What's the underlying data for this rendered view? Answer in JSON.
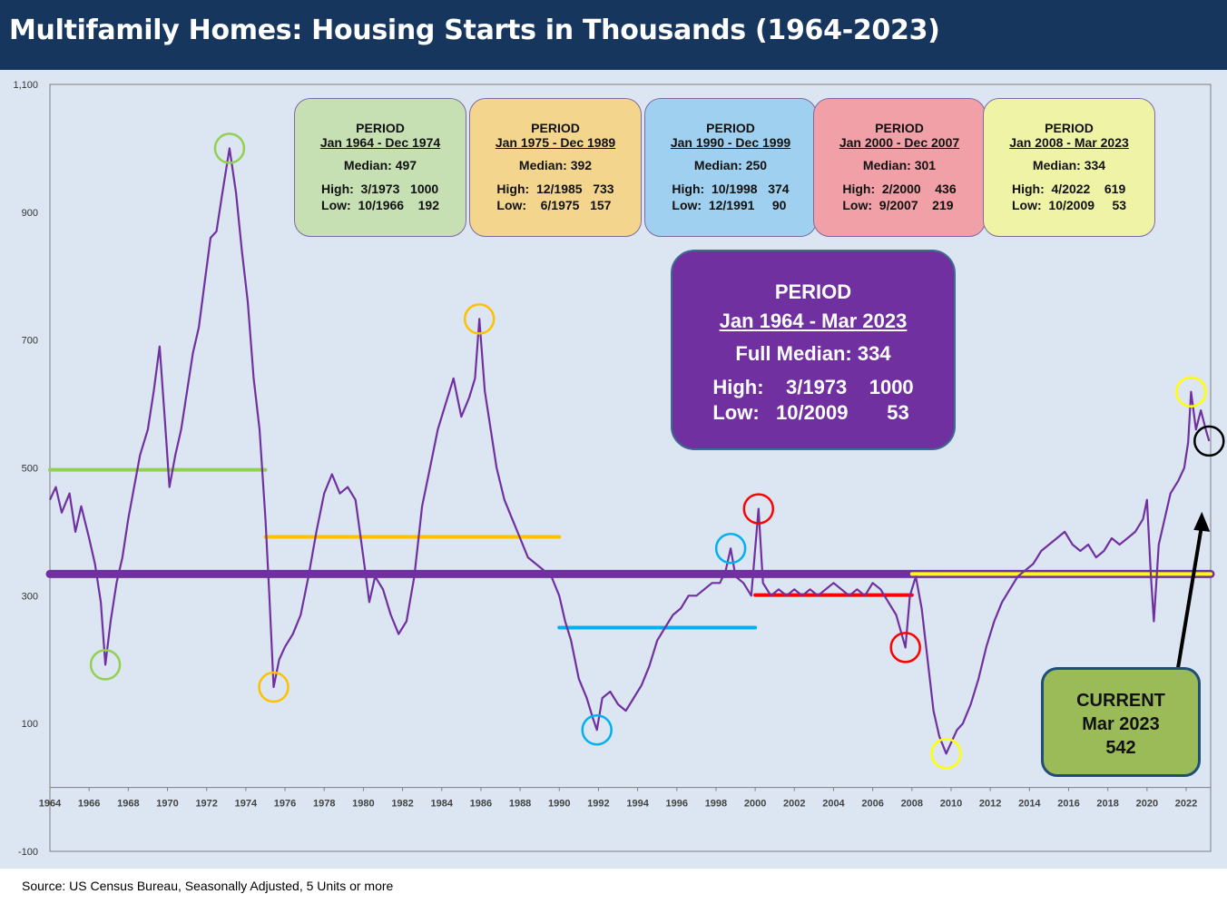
{
  "title": "Multifamily Homes: Housing Starts in Thousands (1964-2023)",
  "source": "Source: US Census Bureau, Seasonally Adjusted, 5 Units or more",
  "colors": {
    "series": "#7030a0",
    "title_bar": "#17365d",
    "background": "#dce6f2",
    "full_median": "#7030a0",
    "period1": "#92d050",
    "period2": "#ffc000",
    "period3": "#00b0f0",
    "period4": "#ff0000",
    "period5": "#ffff00",
    "current_marker": "#000000"
  },
  "period_boxes": [
    {
      "period": "PERIOD",
      "range": "Jan 1964 - Dec 1974",
      "median": "Median: 497",
      "high": "High:  3/1973   1000",
      "low": "Low:  10/1966    192",
      "color": "#c6e0b4"
    },
    {
      "period": "PERIOD",
      "range": "Jan 1975 - Dec 1989",
      "median": "Median: 392",
      "high": "High:  12/1985   733",
      "low": "Low:    6/1975   157",
      "color": "#f4d58d"
    },
    {
      "period": "PERIOD",
      "range": "Jan 1990 - Dec 1999",
      "median": "Median: 250",
      "high": "High:  10/1998   374",
      "low": "Low:  12/1991     90",
      "color": "#9fd0f0"
    },
    {
      "period": "PERIOD",
      "range": "Jan 2000 - Dec 2007",
      "median": "Median: 301",
      "high": "High:  2/2000    436",
      "low": "Low:  9/2007    219",
      "color": "#f0a0a6"
    },
    {
      "period": "PERIOD",
      "range": "Jan 2008 - Mar 2023",
      "median": "Median: 334",
      "high": "High:  4/2022    619",
      "low": "Low:  10/2009     53",
      "color": "#eef3a6"
    }
  ],
  "full_period_box": {
    "period": "PERIOD",
    "range": "Jan 1964 - Mar 2023",
    "median": "Full Median: 334",
    "high": "High:    3/1973    1000",
    "low": "Low:   10/2009       53"
  },
  "current_box": {
    "line1": "CURRENT",
    "line2": "Mar 2023",
    "line3": "542"
  },
  "chart_data": {
    "type": "line",
    "title": "Multifamily Homes: Housing Starts in Thousands (1964-2023)",
    "xlabel": "",
    "ylabel": "",
    "xlim": [
      1964,
      2023.25
    ],
    "ylim": [
      -100,
      1100
    ],
    "y_ticks": [
      -100,
      100,
      300,
      500,
      700,
      900,
      1100
    ],
    "y_tick_labels": [
      "-100",
      "100",
      "300",
      "500",
      "700",
      "900",
      "1,100"
    ],
    "x_ticks": [
      1964,
      1966,
      1968,
      1970,
      1972,
      1974,
      1976,
      1978,
      1980,
      1982,
      1984,
      1986,
      1988,
      1990,
      1992,
      1994,
      1996,
      1998,
      2000,
      2002,
      2004,
      2006,
      2008,
      2010,
      2012,
      2014,
      2016,
      2018,
      2020,
      2022
    ],
    "x_tick_labels": [
      "1964",
      "1966",
      "1968",
      "1970",
      "1972",
      "1974",
      "1976",
      "1978",
      "1980",
      "1982",
      "1984",
      "1986",
      "1988",
      "1990",
      "1992",
      "1994",
      "1996",
      "1998",
      "2000",
      "2002",
      "2004",
      "2006",
      "2008",
      "2010",
      "2012",
      "2014",
      "2016",
      "2018",
      "2020",
      "2022"
    ],
    "grid": false,
    "series": [
      {
        "name": "Multifamily housing starts (5 units or more)",
        "color": "#7030a0",
        "points": [
          [
            1964.0,
            450
          ],
          [
            1964.3,
            470
          ],
          [
            1964.6,
            430
          ],
          [
            1965.0,
            460
          ],
          [
            1965.3,
            400
          ],
          [
            1965.6,
            440
          ],
          [
            1966.0,
            390
          ],
          [
            1966.3,
            350
          ],
          [
            1966.6,
            290
          ],
          [
            1966.83,
            192
          ],
          [
            1967.1,
            260
          ],
          [
            1967.4,
            320
          ],
          [
            1967.7,
            360
          ],
          [
            1968.0,
            420
          ],
          [
            1968.3,
            470
          ],
          [
            1968.6,
            520
          ],
          [
            1969.0,
            560
          ],
          [
            1969.3,
            620
          ],
          [
            1969.6,
            690
          ],
          [
            1969.9,
            560
          ],
          [
            1970.1,
            470
          ],
          [
            1970.4,
            520
          ],
          [
            1970.7,
            560
          ],
          [
            1971.0,
            620
          ],
          [
            1971.3,
            680
          ],
          [
            1971.6,
            720
          ],
          [
            1971.9,
            790
          ],
          [
            1972.2,
            860
          ],
          [
            1972.5,
            870
          ],
          [
            1972.8,
            930
          ],
          [
            1973.17,
            1000
          ],
          [
            1973.5,
            930
          ],
          [
            1973.8,
            840
          ],
          [
            1974.1,
            760
          ],
          [
            1974.4,
            640
          ],
          [
            1974.7,
            560
          ],
          [
            1975.0,
            420
          ],
          [
            1975.2,
            300
          ],
          [
            1975.42,
            157
          ],
          [
            1975.7,
            200
          ],
          [
            1976.0,
            220
          ],
          [
            1976.4,
            240
          ],
          [
            1976.8,
            270
          ],
          [
            1977.2,
            330
          ],
          [
            1977.6,
            400
          ],
          [
            1978.0,
            460
          ],
          [
            1978.4,
            490
          ],
          [
            1978.8,
            460
          ],
          [
            1979.2,
            470
          ],
          [
            1979.6,
            450
          ],
          [
            1980.0,
            360
          ],
          [
            1980.3,
            290
          ],
          [
            1980.6,
            330
          ],
          [
            1981.0,
            310
          ],
          [
            1981.4,
            270
          ],
          [
            1981.8,
            240
          ],
          [
            1982.2,
            260
          ],
          [
            1982.6,
            330
          ],
          [
            1983.0,
            440
          ],
          [
            1983.4,
            500
          ],
          [
            1983.8,
            560
          ],
          [
            1984.2,
            600
          ],
          [
            1984.6,
            640
          ],
          [
            1985.0,
            580
          ],
          [
            1985.4,
            610
          ],
          [
            1985.7,
            640
          ],
          [
            1985.92,
            733
          ],
          [
            1986.2,
            620
          ],
          [
            1986.5,
            560
          ],
          [
            1986.8,
            500
          ],
          [
            1987.2,
            450
          ],
          [
            1987.6,
            420
          ],
          [
            1988.0,
            390
          ],
          [
            1988.4,
            360
          ],
          [
            1988.8,
            350
          ],
          [
            1989.2,
            340
          ],
          [
            1989.6,
            330
          ],
          [
            1990.0,
            300
          ],
          [
            1990.3,
            260
          ],
          [
            1990.6,
            230
          ],
          [
            1991.0,
            170
          ],
          [
            1991.4,
            140
          ],
          [
            1991.7,
            110
          ],
          [
            1991.92,
            90
          ],
          [
            1992.2,
            140
          ],
          [
            1992.6,
            150
          ],
          [
            1993.0,
            130
          ],
          [
            1993.4,
            120
          ],
          [
            1993.8,
            140
          ],
          [
            1994.2,
            160
          ],
          [
            1994.6,
            190
          ],
          [
            1995.0,
            230
          ],
          [
            1995.4,
            250
          ],
          [
            1995.8,
            270
          ],
          [
            1996.2,
            280
          ],
          [
            1996.6,
            300
          ],
          [
            1997.0,
            300
          ],
          [
            1997.4,
            310
          ],
          [
            1997.8,
            320
          ],
          [
            1998.2,
            320
          ],
          [
            1998.5,
            340
          ],
          [
            1998.75,
            374
          ],
          [
            1999.0,
            330
          ],
          [
            1999.4,
            320
          ],
          [
            1999.8,
            300
          ],
          [
            2000.17,
            436
          ],
          [
            2000.4,
            320
          ],
          [
            2000.8,
            300
          ],
          [
            2001.2,
            310
          ],
          [
            2001.6,
            300
          ],
          [
            2002.0,
            310
          ],
          [
            2002.4,
            300
          ],
          [
            2002.8,
            310
          ],
          [
            2003.2,
            300
          ],
          [
            2003.6,
            310
          ],
          [
            2004.0,
            320
          ],
          [
            2004.4,
            310
          ],
          [
            2004.8,
            300
          ],
          [
            2005.2,
            310
          ],
          [
            2005.6,
            300
          ],
          [
            2006.0,
            320
          ],
          [
            2006.4,
            310
          ],
          [
            2006.8,
            290
          ],
          [
            2007.2,
            270
          ],
          [
            2007.67,
            219
          ],
          [
            2007.9,
            300
          ],
          [
            2008.2,
            330
          ],
          [
            2008.5,
            280
          ],
          [
            2008.8,
            200
          ],
          [
            2009.1,
            120
          ],
          [
            2009.4,
            80
          ],
          [
            2009.75,
            53
          ],
          [
            2010.0,
            70
          ],
          [
            2010.3,
            90
          ],
          [
            2010.6,
            100
          ],
          [
            2011.0,
            130
          ],
          [
            2011.4,
            170
          ],
          [
            2011.8,
            220
          ],
          [
            2012.2,
            260
          ],
          [
            2012.6,
            290
          ],
          [
            2013.0,
            310
          ],
          [
            2013.4,
            330
          ],
          [
            2013.8,
            340
          ],
          [
            2014.2,
            350
          ],
          [
            2014.6,
            370
          ],
          [
            2015.0,
            380
          ],
          [
            2015.4,
            390
          ],
          [
            2015.8,
            400
          ],
          [
            2016.2,
            380
          ],
          [
            2016.6,
            370
          ],
          [
            2017.0,
            380
          ],
          [
            2017.4,
            360
          ],
          [
            2017.8,
            370
          ],
          [
            2018.2,
            390
          ],
          [
            2018.6,
            380
          ],
          [
            2019.0,
            390
          ],
          [
            2019.4,
            400
          ],
          [
            2019.8,
            420
          ],
          [
            2020.0,
            450
          ],
          [
            2020.2,
            330
          ],
          [
            2020.35,
            260
          ],
          [
            2020.6,
            380
          ],
          [
            2020.9,
            420
          ],
          [
            2021.2,
            460
          ],
          [
            2021.6,
            480
          ],
          [
            2021.9,
            500
          ],
          [
            2022.1,
            540
          ],
          [
            2022.25,
            619
          ],
          [
            2022.5,
            560
          ],
          [
            2022.75,
            590
          ],
          [
            2023.0,
            560
          ],
          [
            2023.17,
            542
          ]
        ]
      }
    ],
    "reference_lines": [
      {
        "name": "Full Median",
        "value": 334,
        "x": [
          1964,
          2023.25
        ],
        "color": "#7030a0"
      },
      {
        "name": "Median Jan 1964 - Dec 1974",
        "value": 497,
        "x": [
          1964,
          1975
        ],
        "color": "#92d050"
      },
      {
        "name": "Median Jan 1975 - Dec 1989",
        "value": 392,
        "x": [
          1975,
          1990
        ],
        "color": "#ffc000"
      },
      {
        "name": "Median Jan 1990 - Dec 1999",
        "value": 250,
        "x": [
          1990,
          2000
        ],
        "color": "#00b0f0"
      },
      {
        "name": "Median Jan 2000 - Dec 2007",
        "value": 301,
        "x": [
          2000,
          2008
        ],
        "color": "#ff0000"
      },
      {
        "name": "Median Jan 2008 - Mar 2023",
        "value": 334,
        "x": [
          2008,
          2023.25
        ],
        "color": "#ffff00"
      }
    ],
    "highlight_markers": [
      {
        "x": 1973.17,
        "y": 1000,
        "color": "#92d050"
      },
      {
        "x": 1966.83,
        "y": 192,
        "color": "#92d050"
      },
      {
        "x": 1985.92,
        "y": 733,
        "color": "#ffc000"
      },
      {
        "x": 1975.42,
        "y": 157,
        "color": "#ffc000"
      },
      {
        "x": 1998.75,
        "y": 374,
        "color": "#00b0f0"
      },
      {
        "x": 1991.92,
        "y": 90,
        "color": "#00b0f0"
      },
      {
        "x": 2000.17,
        "y": 436,
        "color": "#ff0000"
      },
      {
        "x": 2007.67,
        "y": 219,
        "color": "#ff0000"
      },
      {
        "x": 2022.25,
        "y": 619,
        "color": "#ffff00"
      },
      {
        "x": 2009.75,
        "y": 53,
        "color": "#ffff00"
      },
      {
        "x": 2023.17,
        "y": 542,
        "color": "#000000"
      }
    ]
  }
}
